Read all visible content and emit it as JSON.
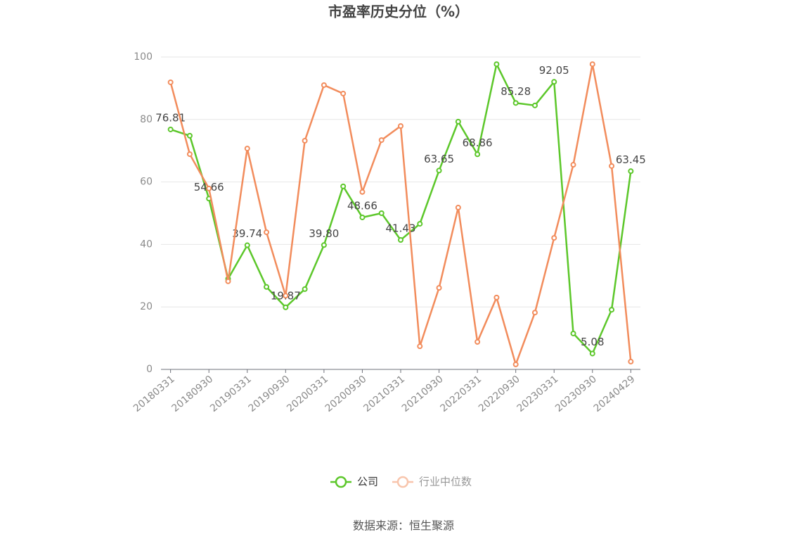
{
  "chart_data": {
    "type": "line",
    "title": "市盈率历史分位（%）",
    "source": "数据来源：恒生聚源",
    "categories": [
      "20180331",
      null,
      "20180930",
      null,
      "20190331",
      null,
      "20190930",
      null,
      "20200331",
      null,
      "20200930",
      null,
      "20210331",
      null,
      "20210930",
      null,
      "20220331",
      null,
      "20220930",
      null,
      "20230331",
      null,
      "20230930",
      null,
      "20240429"
    ],
    "series": [
      {
        "name": "公司",
        "color": "#5cc72a",
        "values": [
          76.81,
          74.8,
          54.66,
          29.0,
          39.74,
          26.4,
          19.87,
          25.7,
          39.8,
          58.6,
          48.66,
          50.0,
          41.43,
          46.6,
          63.65,
          79.3,
          68.86,
          97.7,
          85.28,
          84.5,
          92.05,
          11.5,
          5.08,
          19.1,
          63.45
        ],
        "value_labels": [
          "76.81",
          null,
          "54.66",
          null,
          "39.74",
          null,
          "19.87",
          null,
          "39.80",
          null,
          "48.66",
          null,
          "41.43",
          null,
          "63.65",
          null,
          "68.86",
          null,
          "85.28",
          null,
          "92.05",
          null,
          "5.08",
          null,
          "63.45"
        ]
      },
      {
        "name": "行业中位数",
        "color": "#f28c5c",
        "values": [
          91.9,
          68.9,
          57.9,
          28.2,
          70.7,
          43.9,
          23.6,
          73.2,
          91.0,
          88.3,
          56.8,
          73.4,
          77.9,
          7.4,
          26.1,
          51.8,
          8.8,
          23.0,
          1.6,
          18.2,
          42.1,
          65.5,
          97.7,
          65.1,
          2.5
        ]
      }
    ],
    "ylim": [
      0,
      100
    ],
    "yticks": [
      0,
      20,
      40,
      60,
      80,
      100
    ],
    "grid": true,
    "legend": "bottom"
  }
}
